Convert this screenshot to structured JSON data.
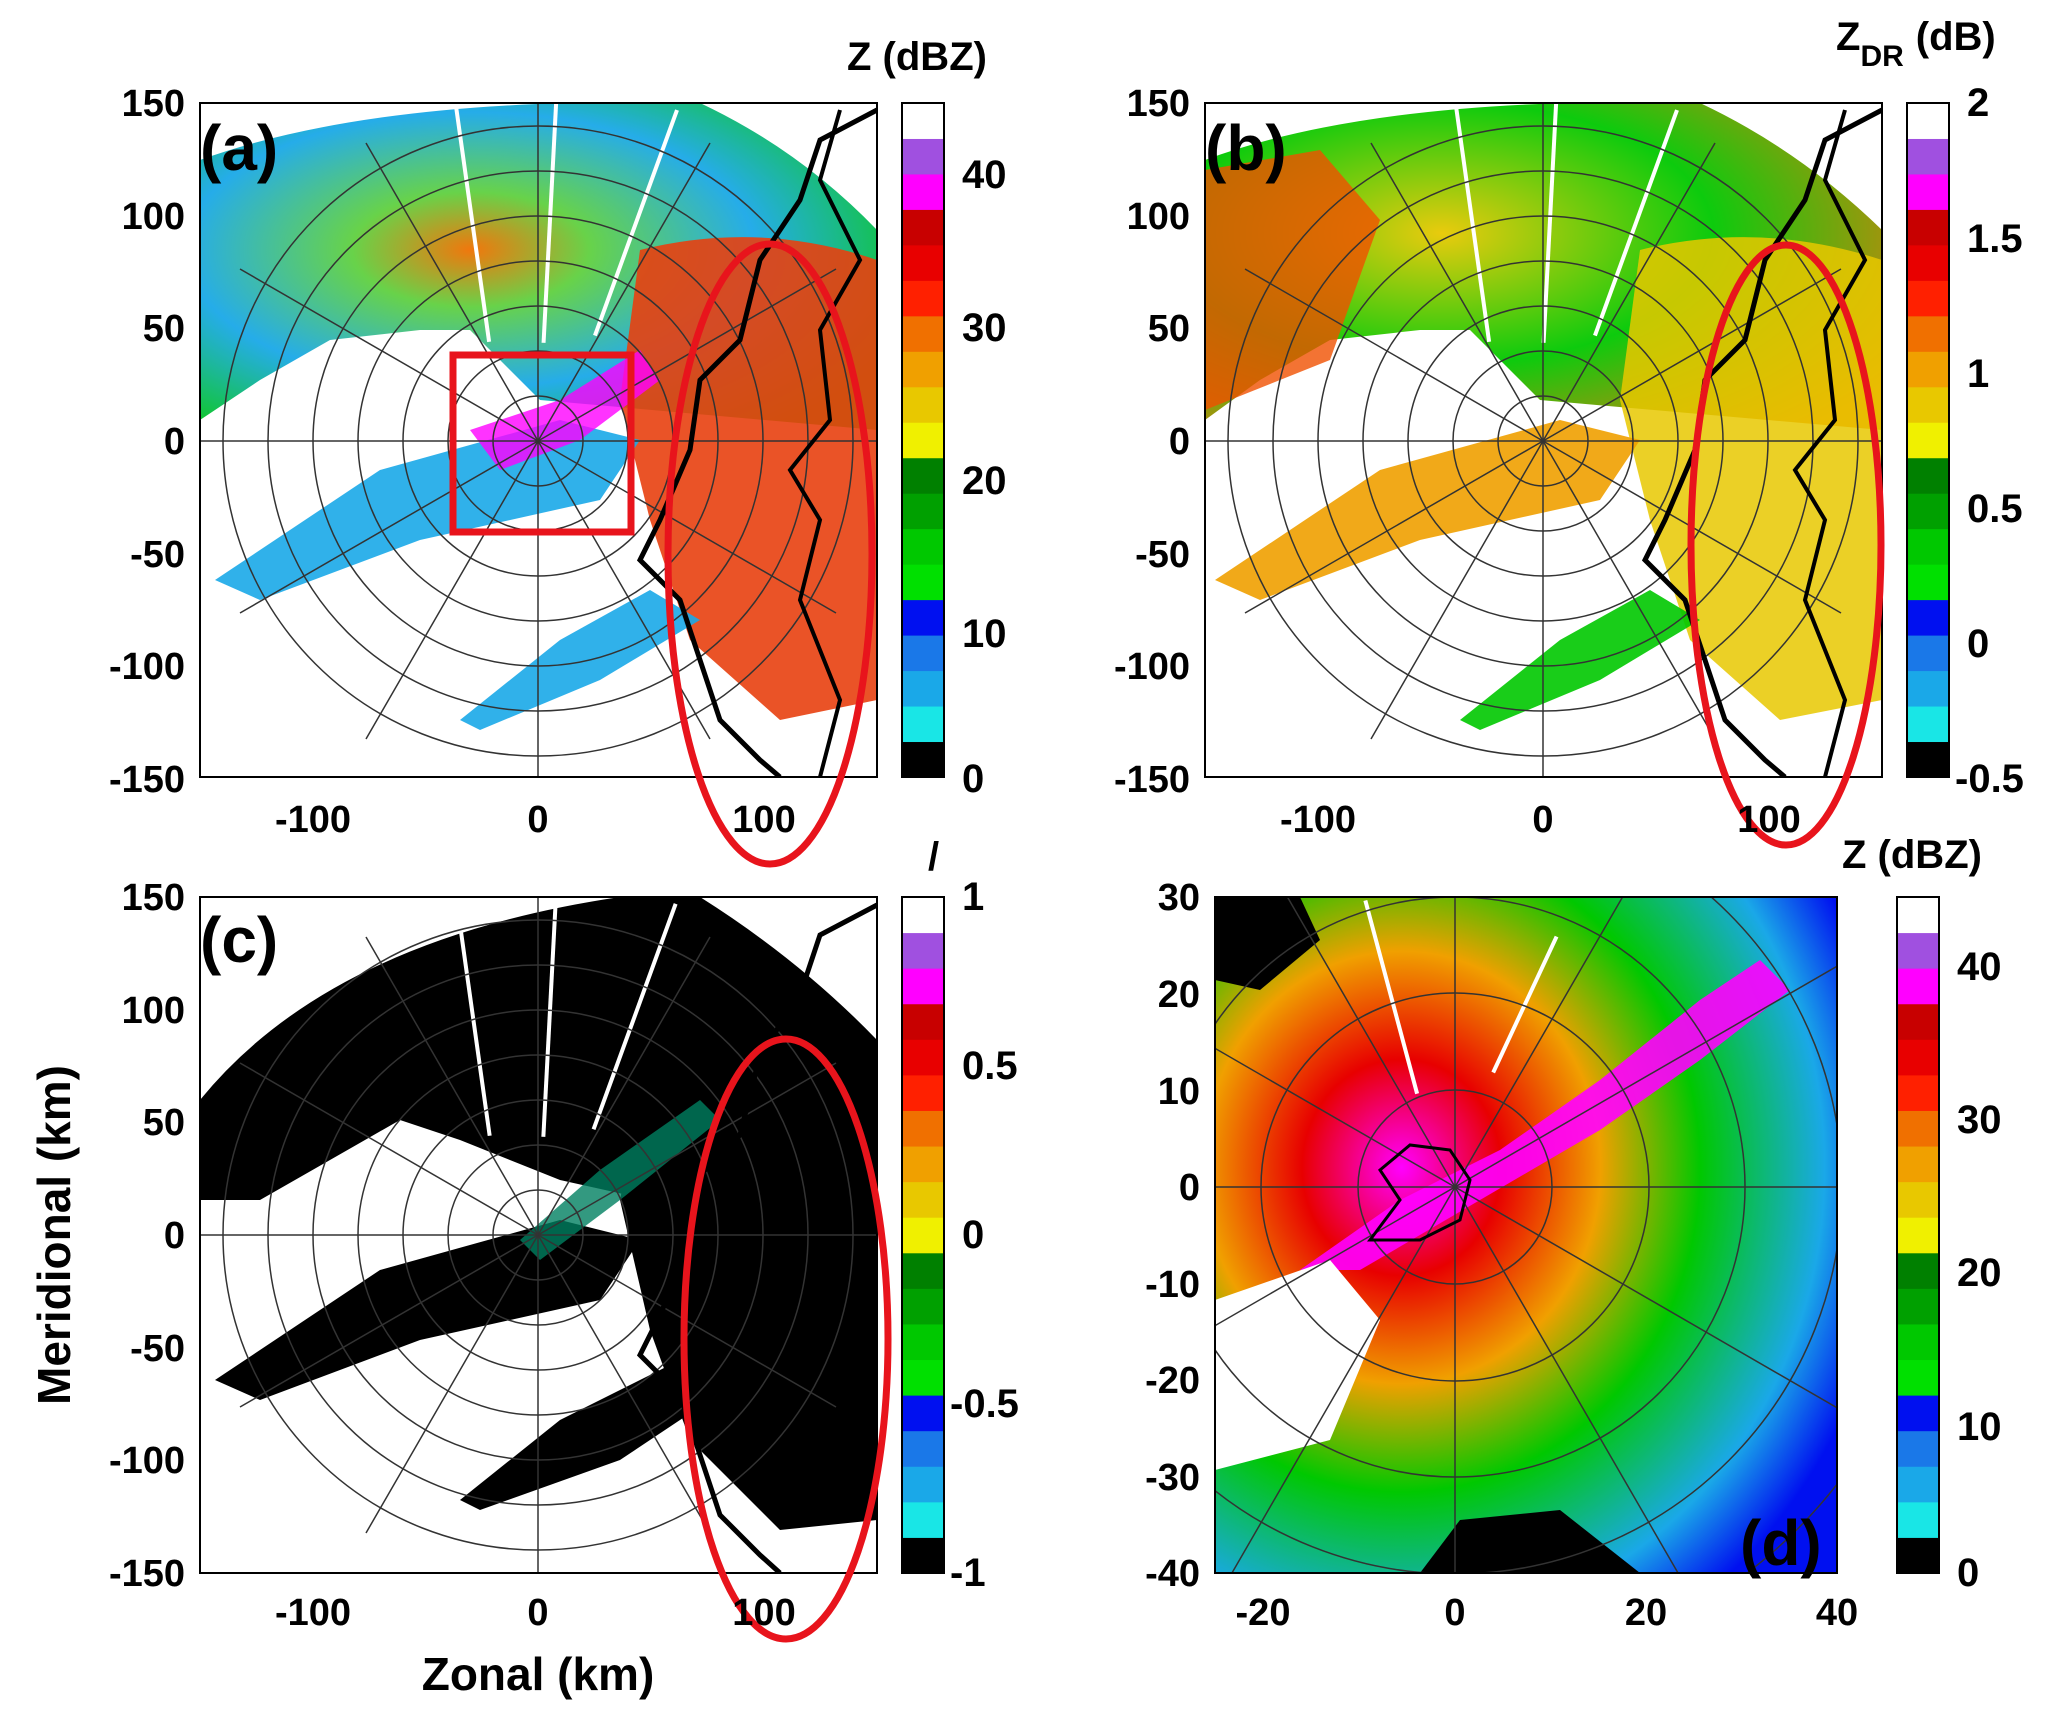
{
  "figure": {
    "xlabel": "Zonal (km)",
    "ylabel": "Meridional (km)"
  },
  "colors": {
    "red_marker": "#e8141c",
    "coast": "#000000",
    "scale": [
      "#000000",
      "#19e6e6",
      "#1aa8e8",
      "#1a78e8",
      "#0010f0",
      "#00e000",
      "#00c800",
      "#00a000",
      "#008000",
      "#f0f000",
      "#e8c800",
      "#f0a000",
      "#f07000",
      "#ff2000",
      "#e80000",
      "#c80000",
      "#ff00ff",
      "#a050e0",
      "#ffffff"
    ]
  },
  "chart_data": [
    {
      "panel": "(a)",
      "type": "heatmap",
      "colorbar_title": "Z (dBZ)",
      "colorbar_ticks": [
        "40",
        "30",
        "20",
        "10",
        "0"
      ],
      "colorbar_range": [
        0,
        44
      ],
      "x_ticks": [
        "-100",
        "0",
        "100"
      ],
      "y_ticks": [
        "150",
        "100",
        "50",
        "0",
        "-50",
        "-100",
        "-150"
      ],
      "xlim": [
        -150,
        150
      ],
      "ylim": [
        -150,
        150
      ],
      "range_rings_km": [
        20,
        40,
        60,
        80,
        100,
        120,
        140
      ],
      "highlight_box_km": [
        -35,
        -40,
        42,
        38
      ],
      "highlight_ellipse_km": {
        "cx": 103,
        "cy": -42,
        "rx": 45,
        "ry": 138
      }
    },
    {
      "panel": "(b)",
      "type": "heatmap",
      "colorbar_title_main": "Z",
      "colorbar_title_sub": "DR",
      "colorbar_title_unit": "(dB)",
      "colorbar_ticks": [
        "2",
        "1.5",
        "1",
        "0.5",
        "0",
        "-0.5"
      ],
      "colorbar_range": [
        -0.5,
        2
      ],
      "x_ticks": [
        "-100",
        "0",
        "100"
      ],
      "y_ticks": [
        "150",
        "100",
        "50",
        "0",
        "-50",
        "-100",
        "-150"
      ],
      "xlim": [
        -150,
        150
      ],
      "ylim": [
        -150,
        150
      ],
      "range_rings_km": [
        20,
        40,
        60,
        80,
        100,
        120,
        140
      ],
      "highlight_ellipse_km": {
        "cx": 108,
        "cy": -40,
        "rx": 42,
        "ry": 133
      }
    },
    {
      "panel": "(c)",
      "type": "heatmap",
      "colorbar_title": "/",
      "colorbar_ticks": [
        "1",
        "0.5",
        "0",
        "-0.5",
        "-1"
      ],
      "colorbar_range": [
        -1,
        1
      ],
      "x_ticks": [
        "-100",
        "0",
        "100"
      ],
      "y_ticks": [
        "150",
        "100",
        "50",
        "0",
        "-50",
        "-100",
        "-150"
      ],
      "xlim": [
        -150,
        150
      ],
      "ylim": [
        -150,
        150
      ],
      "range_rings_km": [
        20,
        40,
        60,
        80,
        100,
        120,
        140
      ],
      "highlight_ellipse_km": {
        "cx": 110,
        "cy": -42,
        "rx": 45,
        "ry": 133
      }
    },
    {
      "panel": "(d)",
      "type": "heatmap",
      "colorbar_title": "Z (dBZ)",
      "colorbar_ticks": [
        "40",
        "30",
        "20",
        "10",
        "0"
      ],
      "colorbar_range": [
        0,
        44
      ],
      "x_ticks": [
        "-20",
        "0",
        "20",
        "40"
      ],
      "y_ticks": [
        "30",
        "20",
        "10",
        "0",
        "-10",
        "-20",
        "-30",
        "-40"
      ],
      "xlim": [
        -25,
        40
      ],
      "ylim": [
        -40,
        30
      ],
      "range_rings_km": [
        10,
        20,
        30,
        40,
        50
      ]
    }
  ]
}
